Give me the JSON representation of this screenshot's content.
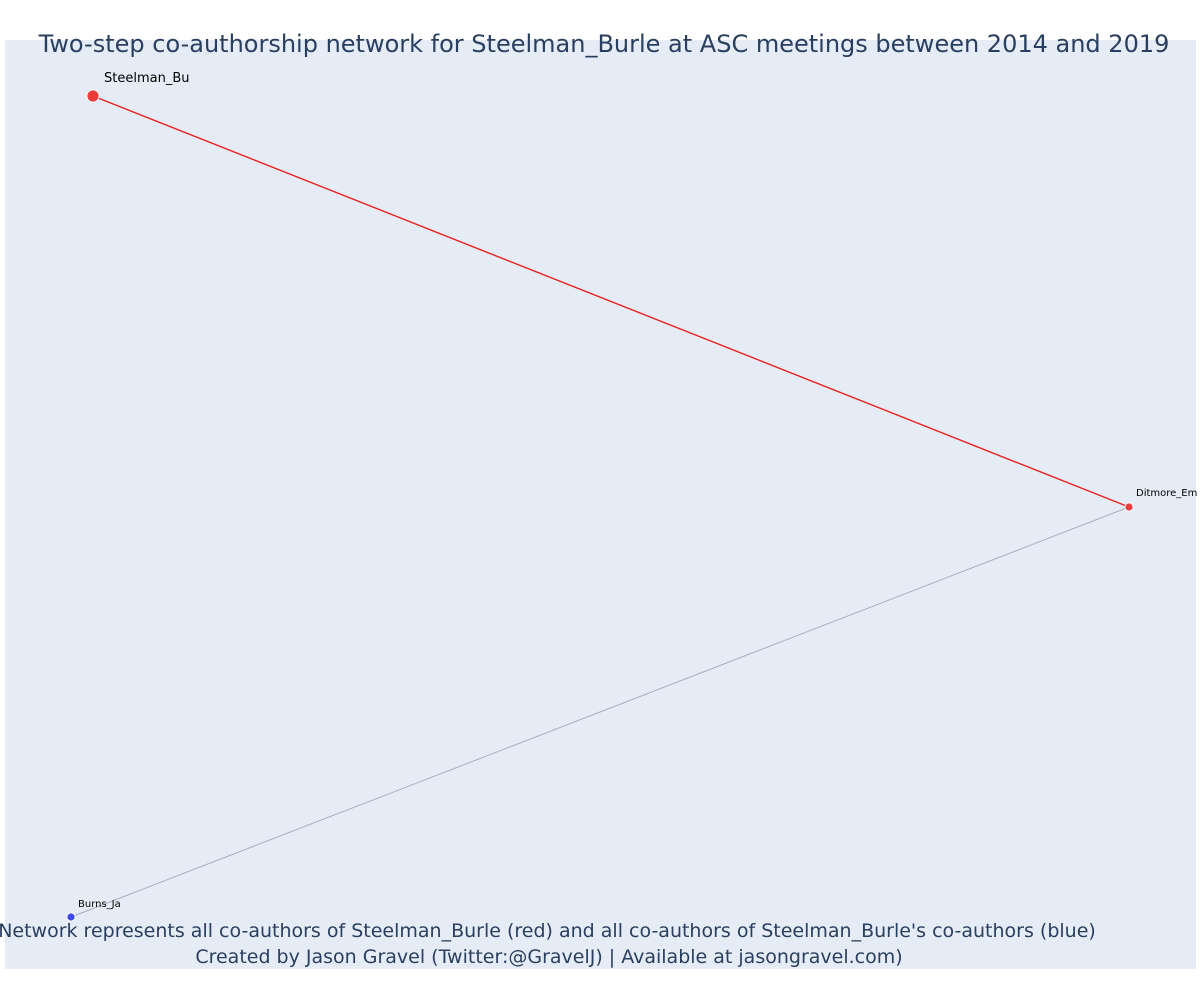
{
  "title": "Two-step co-authorship network for Steelman_Burle at ASC meetings between 2014 and 2019",
  "caption": {
    "line1": "Network represents all co-authors of Steelman_Burle (red) and all co-authors of Steelman_Burle's co-authors (blue)",
    "line2": "Created by Jason Gravel (Twitter:@GravelJ) | Available at jasongravel.com)"
  },
  "colors": {
    "plot_background": "#e5ecf6",
    "red": "#ef3b3b",
    "blue": "#3b47e8",
    "red_edge": "#e8211c",
    "grey_edge": "#a8aec0"
  },
  "nodes": [
    {
      "id": "steelman",
      "label": "Steelman_Bu",
      "group": "red",
      "kind": "focal"
    },
    {
      "id": "ditmore",
      "label": "Ditmore_Em",
      "group": "red",
      "kind": "coauthor"
    },
    {
      "id": "burns",
      "label": "Burns_Ja",
      "group": "blue",
      "kind": "second-step"
    }
  ],
  "edges": [
    {
      "from": "steelman",
      "to": "ditmore",
      "color": "red"
    },
    {
      "from": "ditmore",
      "to": "burns",
      "color": "grey"
    }
  ]
}
